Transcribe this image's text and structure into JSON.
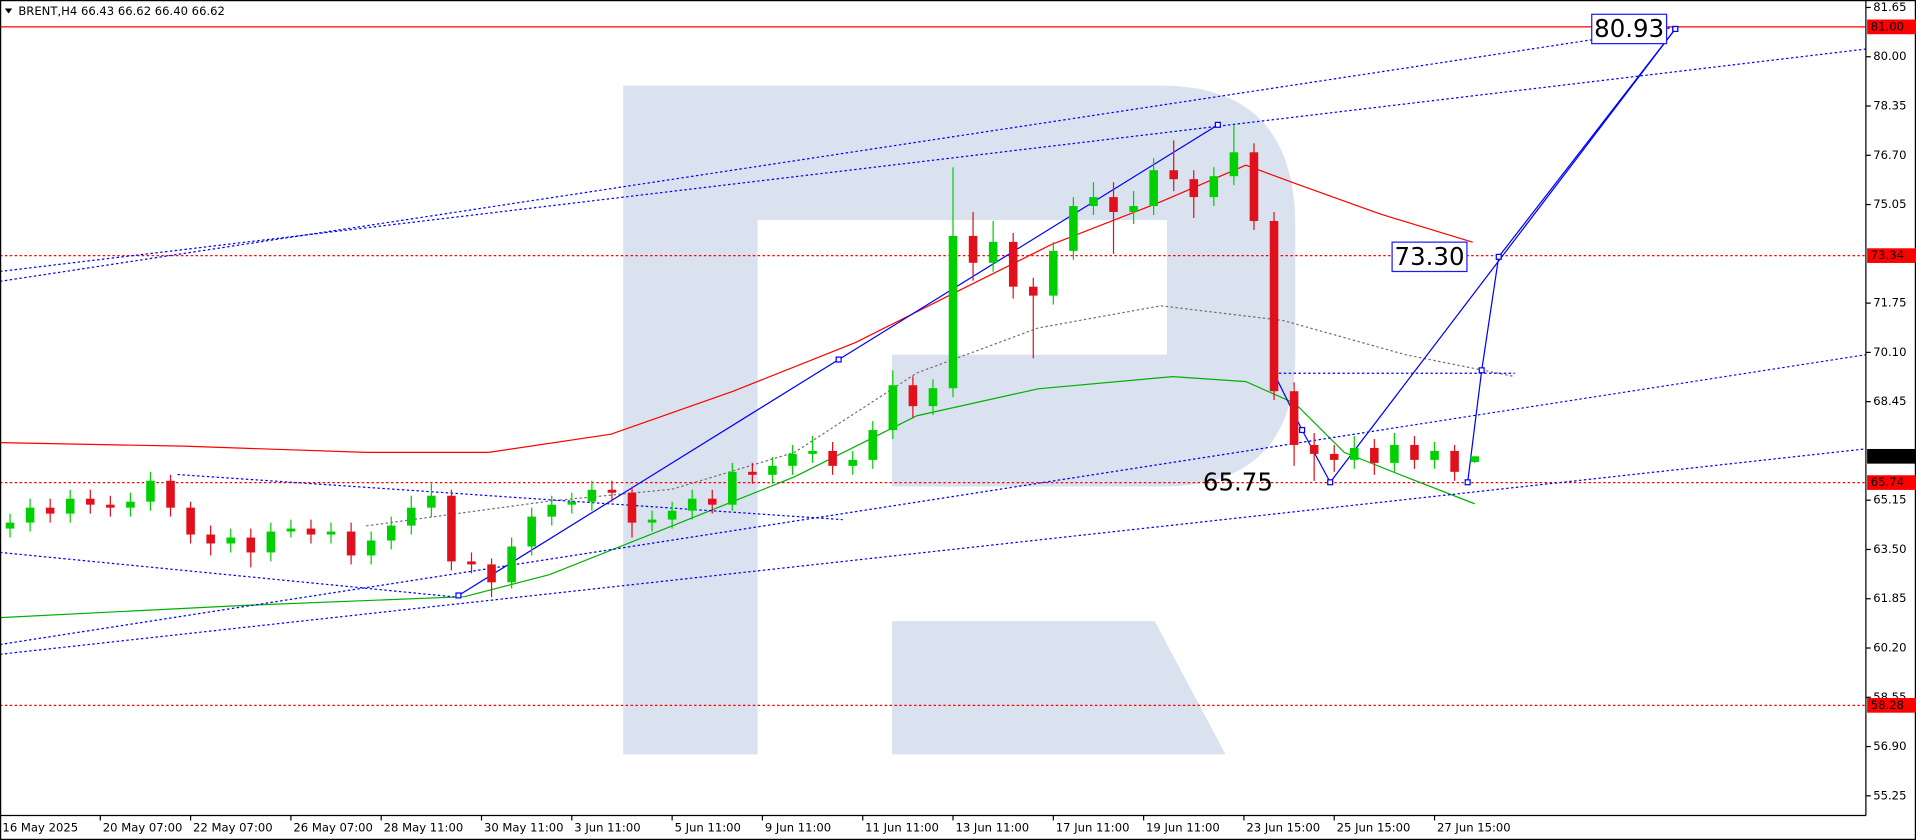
{
  "chart_data": {
    "type": "candlestick",
    "title": "BRENT,H4  66.43 66.62 66.40 66.62",
    "x": [
      1,
      3,
      5,
      7,
      9,
      11,
      13,
      15,
      17,
      19,
      21,
      23,
      25,
      27,
      29,
      31,
      33,
      35,
      37,
      39,
      41,
      43,
      45,
      47,
      49,
      51,
      53,
      55,
      57,
      59,
      61,
      63,
      65,
      67,
      69,
      71,
      73,
      75,
      77,
      79,
      81,
      83,
      85,
      87,
      89,
      91,
      93,
      95,
      97,
      99,
      101,
      103,
      105,
      107,
      109,
      111,
      113,
      115,
      117,
      119,
      121,
      123,
      125,
      127,
      129,
      131,
      133,
      135,
      137,
      139,
      141,
      143,
      145,
      147
    ],
    "open": [
      64.2,
      64.4,
      64.9,
      64.7,
      65.2,
      65.0,
      64.9,
      65.1,
      65.8,
      64.9,
      64.0,
      63.7,
      63.9,
      63.4,
      64.1,
      64.2,
      64.0,
      64.1,
      63.3,
      63.8,
      64.3,
      64.9,
      65.3,
      63.1,
      63.0,
      62.4,
      63.6,
      64.6,
      65.0,
      65.1,
      65.5,
      65.4,
      64.4,
      64.5,
      64.8,
      65.2,
      65.0,
      66.1,
      66.0,
      66.3,
      66.7,
      66.8,
      66.3,
      66.5,
      67.5,
      69.0,
      68.3,
      68.9,
      74.0,
      73.1,
      73.8,
      72.3,
      72.0,
      73.5,
      75.0,
      75.3,
      74.8,
      75.0,
      76.2,
      75.9,
      75.3,
      76.0,
      76.8,
      74.5,
      68.8,
      67.0,
      66.7,
      66.5,
      66.9,
      66.4,
      67.0,
      66.5,
      66.8,
      66.43
    ],
    "high": [
      64.7,
      65.2,
      65.2,
      65.5,
      65.5,
      65.3,
      65.4,
      66.1,
      66.0,
      65.1,
      64.3,
      64.2,
      64.2,
      64.4,
      64.5,
      64.5,
      64.4,
      64.4,
      64.1,
      64.6,
      65.3,
      65.7,
      65.5,
      63.4,
      63.2,
      63.9,
      64.9,
      65.3,
      65.4,
      65.8,
      65.8,
      65.6,
      64.8,
      65.1,
      65.5,
      65.5,
      66.4,
      66.4,
      66.6,
      67.0,
      67.3,
      67.1,
      66.8,
      67.8,
      69.5,
      69.3,
      69.2,
      76.3,
      74.8,
      74.5,
      74.1,
      72.6,
      73.8,
      75.3,
      75.8,
      75.8,
      75.5,
      76.6,
      77.2,
      76.2,
      76.3,
      77.7,
      77.1,
      74.8,
      69.1,
      67.4,
      67.0,
      67.3,
      67.2,
      67.4,
      67.3,
      67.1,
      67.0,
      66.62
    ],
    "low": [
      63.9,
      64.1,
      64.4,
      64.4,
      64.7,
      64.6,
      64.6,
      64.8,
      64.6,
      63.7,
      63.3,
      63.4,
      62.9,
      63.1,
      63.9,
      63.7,
      63.7,
      63.0,
      63.0,
      63.5,
      64.0,
      64.6,
      62.8,
      62.7,
      61.9,
      62.2,
      63.3,
      64.3,
      64.7,
      64.8,
      65.1,
      63.9,
      64.1,
      64.2,
      64.5,
      64.7,
      64.8,
      65.7,
      65.7,
      66.0,
      66.4,
      66.0,
      66.0,
      66.2,
      67.2,
      67.9,
      68.0,
      68.6,
      72.5,
      72.8,
      71.9,
      69.9,
      71.7,
      73.2,
      74.7,
      73.4,
      74.4,
      74.7,
      75.5,
      74.6,
      75.0,
      75.7,
      74.2,
      68.5,
      66.3,
      65.8,
      66.1,
      66.2,
      66.0,
      66.1,
      66.2,
      66.2,
      65.8,
      66.4
    ],
    "close": [
      64.4,
      64.9,
      64.7,
      65.2,
      65.0,
      64.9,
      65.1,
      65.8,
      64.9,
      64.0,
      63.7,
      63.9,
      63.4,
      64.1,
      64.2,
      64.0,
      64.1,
      63.3,
      63.8,
      64.3,
      64.9,
      65.3,
      63.1,
      63.0,
      62.4,
      63.6,
      64.6,
      65.0,
      65.1,
      65.5,
      65.4,
      64.4,
      64.5,
      64.8,
      65.2,
      65.0,
      66.1,
      66.0,
      66.3,
      66.7,
      66.8,
      66.3,
      66.5,
      67.5,
      69.0,
      68.3,
      68.9,
      74.0,
      73.1,
      73.8,
      72.3,
      72.0,
      73.5,
      75.0,
      75.3,
      74.8,
      75.0,
      76.2,
      75.9,
      75.3,
      76.0,
      76.8,
      74.5,
      68.8,
      67.0,
      66.7,
      66.5,
      66.9,
      66.4,
      67.0,
      66.5,
      66.8,
      66.1,
      66.62
    ],
    "up_color": "#00d000",
    "down_color": "#e0101c",
    "xlim": [
      0,
      186
    ],
    "xticks": [
      {
        "value": 0,
        "label": "16 May 2025"
      },
      {
        "value": 10,
        "label": "20 May 07:00"
      },
      {
        "value": 19,
        "label": "22 May 07:00"
      },
      {
        "value": 29,
        "label": "26 May 07:00"
      },
      {
        "value": 38,
        "label": "28 May 11:00"
      },
      {
        "value": 48,
        "label": "30 May 11:00"
      },
      {
        "value": 57,
        "label": "3 Jun 11:00"
      },
      {
        "value": 67,
        "label": "5 Jun 11:00"
      },
      {
        "value": 76,
        "label": "9 Jun 11:00"
      },
      {
        "value": 86,
        "label": "11 Jun 11:00"
      },
      {
        "value": 95,
        "label": "13 Jun 11:00"
      },
      {
        "value": 105,
        "label": "17 Jun 11:00"
      },
      {
        "value": 114,
        "label": "19 Jun 11:00"
      },
      {
        "value": 124,
        "label": "23 Jun 15:00"
      },
      {
        "value": 133,
        "label": "25 Jun 15:00"
      },
      {
        "value": 143,
        "label": "27 Jun 15:00"
      }
    ],
    "ylim": [
      54.59,
      81.9
    ],
    "yticks": [
      81.65,
      {
        "value": 80,
        "label": "80.00"
      },
      78.35,
      {
        "value": 76.7,
        "label": "76.70"
      },
      75.05,
      71.75,
      {
        "value": 70.1,
        "label": "70.10"
      },
      68.45,
      65.15,
      {
        "value": 63.5,
        "label": "63.50"
      },
      61.85,
      {
        "value": 60.2,
        "label": "60.20"
      },
      58.55,
      {
        "value": 56.9,
        "label": "56.90"
      },
      55.25
    ],
    "lines": [
      {
        "color": "#ff0000",
        "dash": false,
        "markers": false,
        "x": [
          0,
          18.3,
          36.5,
          48.7,
          60.9,
          73.1,
          85.3,
          95,
          104.8,
          115.7,
          124.2,
          129.1,
          137.6,
          146.8
        ],
        "values": [
          67.08,
          66.96,
          66.75,
          66.75,
          67.36,
          68.8,
          70.43,
          72.07,
          73.71,
          75.14,
          76.37,
          75.76,
          74.73,
          73.79
        ]
      },
      {
        "color": "#00b000",
        "dash": false,
        "markers": false,
        "x": [
          0,
          24.4,
          46.3,
          54.8,
          67,
          79.2,
          91.4,
          103.5,
          116.9,
          124.2,
          129.1,
          134,
          140.1,
          147
        ],
        "values": [
          61.22,
          61.63,
          61.92,
          62.66,
          64.29,
          65.93,
          67.98,
          68.88,
          69.29,
          69.12,
          68.39,
          66.75,
          65.93,
          65.03
        ]
      },
      {
        "color": "#707070",
        "dash": true,
        "markers": false,
        "x": [
          36.5,
          54.8,
          67,
          79.2,
          91.4,
          103.5,
          115.7,
          127.9,
          140.1,
          151
        ],
        "values": [
          64.29,
          65.12,
          65.52,
          66.75,
          69.41,
          70.92,
          71.66,
          71.17,
          70.02,
          69.29
        ]
      },
      {
        "color": "#0000ff",
        "dash": true,
        "markers": false,
        "x": [
          0,
          167
        ],
        "values": [
          72.48,
          80.99
        ]
      },
      {
        "color": "#0000ff",
        "dash": true,
        "markers": false,
        "x": [
          0,
          186
        ],
        "values": [
          72.81,
          80.26
        ]
      },
      {
        "color": "#0000ff",
        "dash": true,
        "markers": false,
        "x": [
          0,
          186
        ],
        "values": [
          60.32,
          70.02
        ]
      },
      {
        "color": "#0000ff",
        "dash": true,
        "markers": false,
        "x": [
          0,
          186
        ],
        "values": [
          59.99,
          66.87
        ]
      },
      {
        "color": "#0000ff",
        "dash": true,
        "markers": false,
        "x": [
          17.7,
          84
        ],
        "values": [
          66.01,
          64.5
        ]
      },
      {
        "color": "#0000ff",
        "dash": true,
        "markers": false,
        "x": [
          0,
          45.7
        ],
        "values": [
          63.4,
          61.9
        ]
      },
      {
        "color": "#0000ff",
        "dash": true,
        "markers": false,
        "x": [
          127,
          151
        ],
        "values": [
          69.4,
          69.4
        ]
      },
      {
        "color": "#0000ff",
        "dash": false,
        "markers": true,
        "x": [
          45.7,
          83.6,
          121.4
        ],
        "values": [
          61.96,
          69.86,
          77.72
        ]
      },
      {
        "color": "#0000ff",
        "dash": false,
        "markers": true,
        "x": [
          127,
          129.8,
          132.6,
          167
        ],
        "values": [
          69.4,
          67.5,
          65.75,
          80.93
        ]
      },
      {
        "color": "#0000ff",
        "dash": false,
        "markers": true,
        "x": [
          146.3,
          147.7,
          149.4,
          167
        ],
        "values": [
          65.75,
          69.5,
          73.3,
          80.93
        ]
      }
    ],
    "level_color": "#ff0000",
    "levels": [
      {
        "value": 81,
        "label": "81.00",
        "dash": false
      },
      {
        "value": 73.34,
        "dash": true
      },
      {
        "value": 65.74,
        "dash": true
      },
      {
        "value": 58.28,
        "dash": true
      }
    ],
    "current_price": 66.62,
    "forecast_labels": [
      {
        "x": 162.4,
        "value": 80.93,
        "boxed": true
      },
      {
        "x": 142.5,
        "value": 73.3,
        "label": "73.30",
        "boxed": true
      },
      {
        "x": 123.4,
        "value": 65.75,
        "boxed": false
      }
    ],
    "forecast_color": "#1a1aff"
  }
}
